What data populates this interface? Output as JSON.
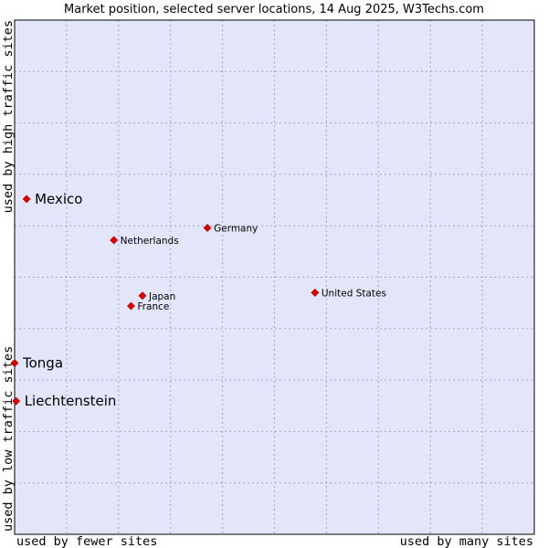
{
  "chart_data": {
    "type": "scatter",
    "title": "Market position, selected server locations, 14 Aug 2025, W3Techs.com",
    "xlabel_left": "used by fewer sites",
    "xlabel_right": "used by many sites",
    "ylabel_bottom": "used by low traffic sites",
    "ylabel_top": "used by high traffic sites",
    "xlim": [
      0,
      100
    ],
    "ylim": [
      0,
      100
    ],
    "grid": true,
    "colors": {
      "plot_bg": "#e3e5f9",
      "grid": "#a8a8c4",
      "border": "#000000",
      "marker": "#e00000"
    },
    "points": [
      {
        "label": "Mexico",
        "x": 2.3,
        "y": 65.2,
        "emphasis": true
      },
      {
        "label": "Tonga",
        "x": 0.0,
        "y": 33.3,
        "emphasis": true
      },
      {
        "label": "Liechtenstein",
        "x": 0.3,
        "y": 25.9,
        "emphasis": true
      },
      {
        "label": "Germany",
        "x": 37.1,
        "y": 59.6,
        "emphasis": false
      },
      {
        "label": "Netherlands",
        "x": 19.1,
        "y": 57.2,
        "emphasis": false
      },
      {
        "label": "United States",
        "x": 57.8,
        "y": 47.0,
        "emphasis": false
      },
      {
        "label": "Japan",
        "x": 24.6,
        "y": 46.4,
        "emphasis": false
      },
      {
        "label": "France",
        "x": 22.4,
        "y": 44.4,
        "emphasis": false
      }
    ]
  }
}
